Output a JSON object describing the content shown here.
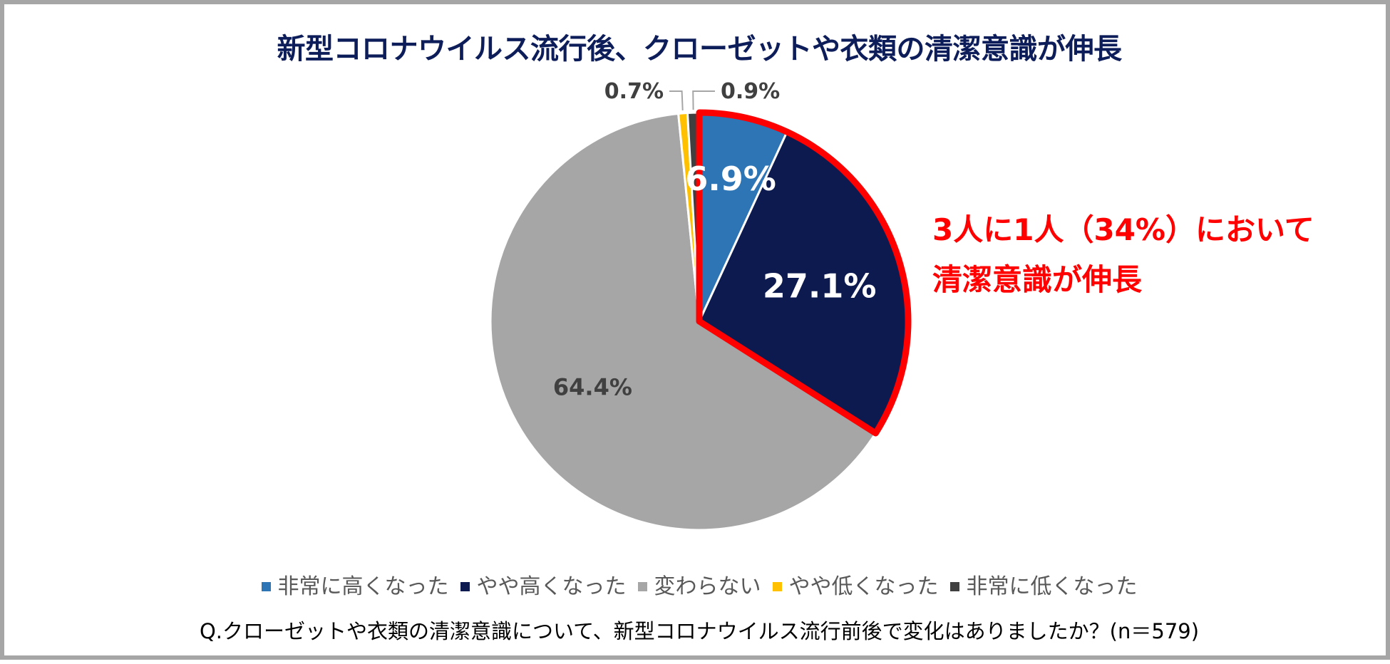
{
  "title": "新型コロナウイルス流行後、クローゼットや衣類の清潔意識が伸長",
  "callout": {
    "line1": "3人に1人（34%）において",
    "line2": "清潔意識が伸長"
  },
  "question": "Q.クローゼットや衣類の清潔意識について、新型コロナウイルス流行前後で変化はありましたか？(n＝579)",
  "chart_data": {
    "type": "pie",
    "title": "新型コロナウイルス流行後、クローゼットや衣類の清潔意識が伸長",
    "legend_position": "bottom",
    "highlight": {
      "categories": [
        "非常に高くなった",
        "やや高くなった"
      ],
      "color": "#ff0000"
    },
    "slices": [
      {
        "name": "非常に高くなった",
        "value": 6.9,
        "label": "6.9%",
        "color": "#2e75b6"
      },
      {
        "name": "やや高くなった",
        "value": 27.1,
        "label": "27.1%",
        "color": "#0d1a4f"
      },
      {
        "name": "変わらない",
        "value": 64.4,
        "label": "64.4%",
        "color": "#a6a6a6"
      },
      {
        "name": "やや低くなった",
        "value": 0.7,
        "label": "0.7%",
        "color": "#ffc000"
      },
      {
        "name": "非常に低くなった",
        "value": 0.9,
        "label": "0.9%",
        "color": "#404040"
      }
    ]
  }
}
